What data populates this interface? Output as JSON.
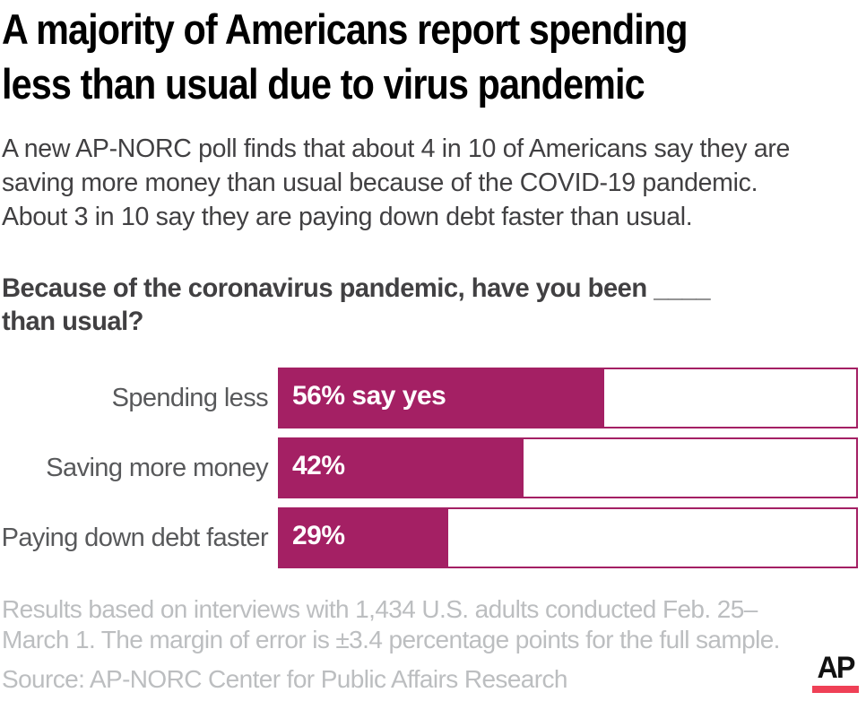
{
  "header": {
    "title": "A majority of Americans report spending\nless than usual due to virus pandemic",
    "subtitle": "A new AP-NORC poll finds that about 4 in 10 of Americans say they are\nsaving more money than usual because of the COVID-19 pandemic.\nAbout 3 in 10 say they are paying down debt faster than usual.",
    "question": "Because of the coronavirus pandemic, have you been ____\nthan usual?"
  },
  "chart_data": {
    "type": "bar",
    "orientation": "horizontal",
    "title": "Because of the coronavirus pandemic, have you been ____ than usual?",
    "categories": [
      "Spending less",
      "Saving more money",
      "Paying down debt faster"
    ],
    "values": [
      56,
      42,
      29
    ],
    "bar_labels": [
      "56% say yes",
      "42%",
      "29%"
    ],
    "xlabel": "",
    "ylabel": "",
    "xlim": [
      0,
      100
    ],
    "grid": false,
    "legend": "none",
    "bar_color": "#A42064",
    "track_border_color": "#A42064",
    "track_fill_color": "#FFFFFF",
    "value_label_color": "#FFFFFF"
  },
  "footer": {
    "note": "Results based on interviews with 1,434 U.S. adults conducted Feb. 25–\nMarch 1. The margin of error is ±3.4 percentage points for the full sample.",
    "source": "Source: AP-NORC Center for Public Affairs Research",
    "logo_text": "AP"
  },
  "colors": {
    "title": "#000000",
    "subtitle": "#414042",
    "category_label": "#58595B",
    "footnote": "#BCBEC0",
    "ap_logo_red": "#EF4056",
    "background": "#FFFFFF"
  }
}
